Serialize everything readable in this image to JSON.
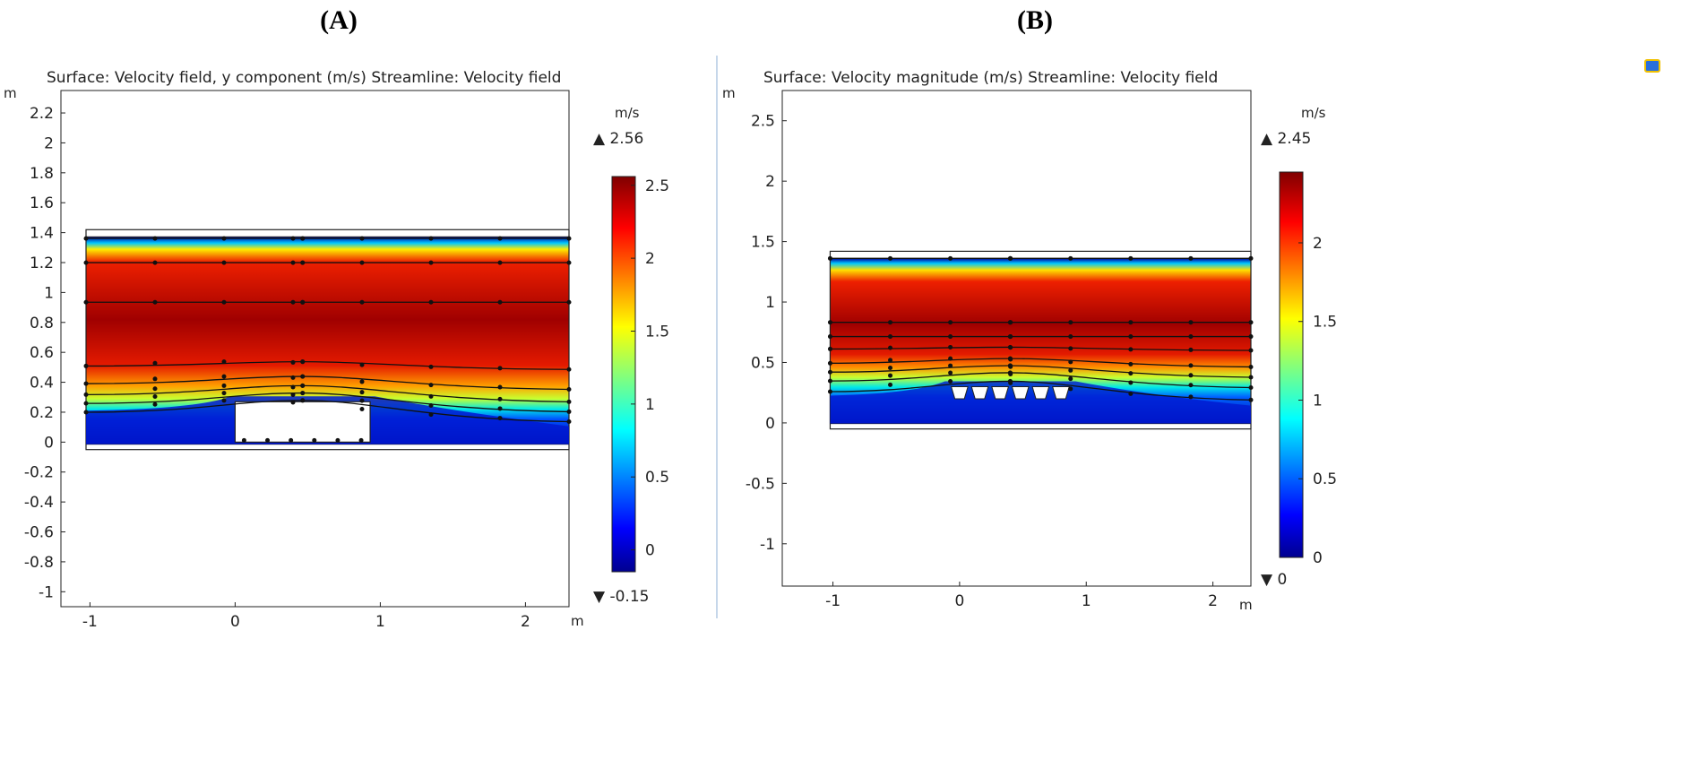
{
  "panels": [
    {
      "label": "(A)",
      "title": "Surface: Velocity field, y component (m/s)  Streamline: Velocity field",
      "axis_unit": "m",
      "colorbar_unit": "m/s",
      "colorbar_max_label": "▲ 2.56",
      "colorbar_min_label": "▼ -0.15"
    },
    {
      "label": "(B)",
      "title": "Surface: Velocity magnitude (m/s)  Streamline: Velocity field",
      "axis_unit": "m",
      "colorbar_unit": "m/s",
      "colorbar_max_label": "▲ 2.45",
      "colorbar_min_label": "▼ 0"
    }
  ],
  "chart_data": [
    {
      "type": "heatmap",
      "title": "Surface: Velocity field, y component (m/s)  Streamline: Velocity field",
      "xlabel": "m",
      "ylabel": "m",
      "xlim": [
        -1.2,
        2.3
      ],
      "ylim": [
        -1.1,
        2.35
      ],
      "x_ticks": [
        -1,
        0,
        1,
        2
      ],
      "y_ticks": [
        -1,
        -0.8,
        -0.6,
        -0.4,
        -0.2,
        0,
        0.2,
        0.4,
        0.6,
        0.8,
        1,
        1.2,
        1.4,
        1.6,
        1.8,
        2,
        2.2
      ],
      "domain": {
        "x": [
          -1.2,
          2.3
        ],
        "y": [
          -0.05,
          1.42
        ]
      },
      "obstacle": {
        "x": [
          0,
          0.93
        ],
        "y": [
          0,
          0.27
        ]
      },
      "colorbar": {
        "min": -0.15,
        "max": 2.56,
        "ticks": [
          0,
          0.5,
          1,
          1.5,
          2,
          2.5
        ]
      }
    },
    {
      "type": "heatmap",
      "title": "Surface: Velocity magnitude (m/s)  Streamline: Velocity field",
      "xlabel": "m",
      "ylabel": "m",
      "xlim": [
        -1.4,
        2.3
      ],
      "ylim": [
        -1.35,
        2.75
      ],
      "x_ticks": [
        -1,
        0,
        1,
        2
      ],
      "y_ticks": [
        -1,
        -0.5,
        0,
        0.5,
        1,
        1.5,
        2,
        2.5
      ],
      "domain": {
        "x": [
          -1.22,
          2.3
        ],
        "y": [
          -0.05,
          1.42
        ]
      },
      "obstacle": {
        "x": [
          -0.08,
          0.88
        ],
        "y": [
          0.2,
          0.3
        ],
        "segments": 6
      },
      "colorbar": {
        "min": 0,
        "max": 2.45,
        "ticks": [
          0,
          0.5,
          1,
          1.5,
          2
        ]
      }
    }
  ]
}
